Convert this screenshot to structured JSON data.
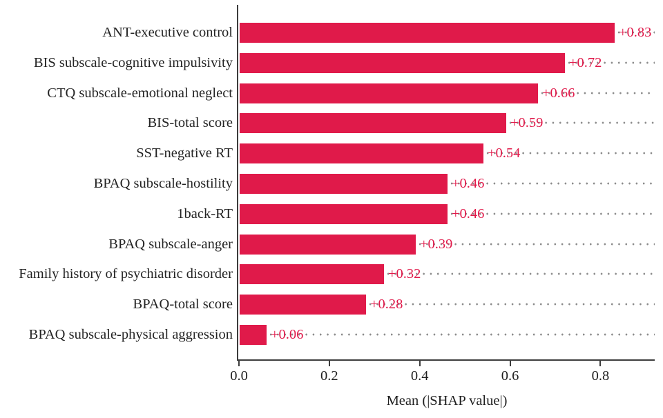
{
  "chart_data": {
    "type": "bar",
    "orientation": "horizontal",
    "title": "",
    "xlabel": "Mean (|SHAP value|)",
    "ylabel": "",
    "categories": [
      "ANT-executive control",
      "BIS subscale-cognitive impulsivity",
      "CTQ subscale-emotional neglect",
      "BIS-total score",
      "SST-negative RT",
      "BPAQ subscale-hostility",
      "1back-RT",
      "BPAQ subscale-anger",
      "Family history of psychiatric disorder",
      "BPAQ-total score",
      "BPAQ subscale-physical aggression"
    ],
    "values": [
      0.83,
      0.72,
      0.66,
      0.59,
      0.54,
      0.46,
      0.46,
      0.39,
      0.32,
      0.28,
      0.06
    ],
    "bar_labels": [
      "+0.83",
      "+0.72",
      "+0.66",
      "+0.59",
      "+0.54",
      "+0.46",
      "+0.46",
      "+0.39",
      "+0.32",
      "+0.28",
      "+0.06"
    ],
    "x_ticks": [
      0.0,
      0.2,
      0.4,
      0.6,
      0.8
    ],
    "x_tick_labels": [
      "0.0",
      "0.2",
      "0.4",
      "0.6",
      "0.8"
    ],
    "xlim": [
      0,
      0.92
    ],
    "legend": "none",
    "grid": "dotted leader lines from bar end to right edge",
    "colors": {
      "bar": "#E01A4A",
      "value_label": "#E01A4A",
      "axis": "#3C3C3C",
      "category_label": "#242424",
      "tick_label": "#1F1F1F",
      "dot_leader": "#8C8C8C",
      "background": "#FFFFFF"
    }
  }
}
